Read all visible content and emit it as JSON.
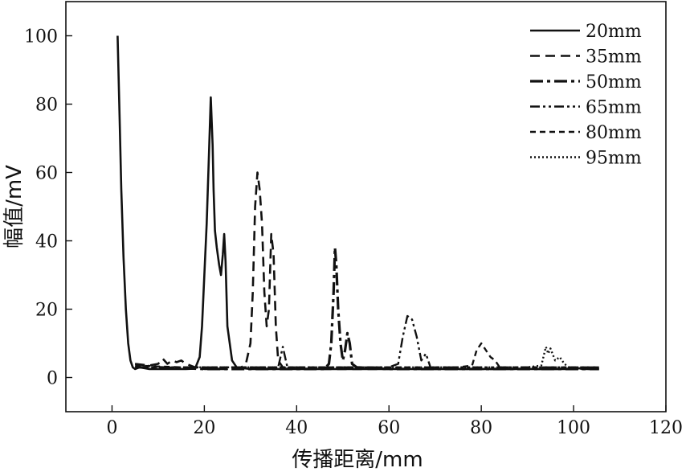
{
  "chart_data": {
    "type": "line",
    "xlabel": "传播距离/mm",
    "ylabel": "幅值/mV",
    "xlim": [
      -10,
      120
    ],
    "ylim": [
      -10,
      110
    ],
    "xticks": [
      0,
      20,
      40,
      60,
      80,
      100,
      120
    ],
    "yticks": [
      0,
      20,
      40,
      60,
      80,
      100
    ],
    "legend_position": "top-right",
    "grid": false,
    "series": [
      {
        "name": "20mm",
        "dash": "solid",
        "width": 2.6,
        "points": [
          [
            1.2,
            100
          ],
          [
            1.6,
            78
          ],
          [
            2,
            55
          ],
          [
            2.5,
            35
          ],
          [
            3,
            20
          ],
          [
            3.5,
            10
          ],
          [
            4,
            5
          ],
          [
            4.5,
            3
          ],
          [
            5,
            2.5
          ],
          [
            6,
            3
          ],
          [
            8,
            2.5
          ],
          [
            10,
            2.5
          ],
          [
            12,
            2.5
          ],
          [
            14,
            2.5
          ],
          [
            16,
            2.5
          ],
          [
            18,
            2.6
          ],
          [
            19,
            6
          ],
          [
            19.5,
            15
          ],
          [
            20,
            30
          ],
          [
            20.5,
            45
          ],
          [
            21,
            65
          ],
          [
            21.4,
            82
          ],
          [
            21.8,
            68
          ],
          [
            22,
            55
          ],
          [
            22.3,
            43
          ],
          [
            22.7,
            38
          ],
          [
            23.2,
            33
          ],
          [
            23.6,
            30
          ],
          [
            24,
            36
          ],
          [
            24.3,
            42
          ],
          [
            24.6,
            34
          ],
          [
            25,
            15
          ],
          [
            25.5,
            10
          ],
          [
            26,
            5
          ],
          [
            27,
            3
          ],
          [
            30,
            2.5
          ],
          [
            40,
            2.5
          ],
          [
            50,
            2.5
          ],
          [
            60,
            2.5
          ],
          [
            70,
            2.5
          ],
          [
            80,
            2.5
          ],
          [
            90,
            2.5
          ],
          [
            100,
            2.5
          ],
          [
            103,
            3
          ],
          [
            105.5,
            2.5
          ]
        ]
      },
      {
        "name": "35mm",
        "dash": "12,7",
        "width": 2.6,
        "points": [
          [
            5,
            4
          ],
          [
            8,
            3.5
          ],
          [
            10,
            4
          ],
          [
            11,
            5.5
          ],
          [
            12,
            4
          ],
          [
            13,
            5
          ],
          [
            14,
            4.5
          ],
          [
            15,
            5
          ],
          [
            16,
            4
          ],
          [
            18,
            3
          ],
          [
            20,
            2.5
          ],
          [
            25,
            2.5
          ],
          [
            28,
            3
          ],
          [
            29,
            4
          ],
          [
            30,
            10
          ],
          [
            30.5,
            25
          ],
          [
            31,
            50
          ],
          [
            31.5,
            60
          ],
          [
            32,
            55
          ],
          [
            32.5,
            45
          ],
          [
            33,
            25
          ],
          [
            33.5,
            15
          ],
          [
            34,
            20
          ],
          [
            34.5,
            42
          ],
          [
            35,
            36
          ],
          [
            35.5,
            15
          ],
          [
            36,
            5
          ],
          [
            37,
            3
          ],
          [
            40,
            2.5
          ],
          [
            50,
            2.5
          ],
          [
            70,
            2.5
          ],
          [
            90,
            2.5
          ],
          [
            105.5,
            2.5
          ]
        ]
      },
      {
        "name": "50mm",
        "dash": "16,5,4,5",
        "width": 3.2,
        "points": [
          [
            5,
            3
          ],
          [
            10,
            3
          ],
          [
            20,
            2.5
          ],
          [
            30,
            2.5
          ],
          [
            40,
            2.5
          ],
          [
            46,
            2.5
          ],
          [
            47,
            4
          ],
          [
            47.5,
            10
          ],
          [
            48,
            25
          ],
          [
            48.3,
            38
          ],
          [
            48.6,
            33
          ],
          [
            49,
            20
          ],
          [
            49.5,
            10
          ],
          [
            50,
            5
          ],
          [
            50.5,
            8
          ],
          [
            51,
            13
          ],
          [
            51.5,
            10
          ],
          [
            52,
            4
          ],
          [
            53,
            3
          ],
          [
            60,
            2.5
          ],
          [
            70,
            2.5
          ],
          [
            80,
            2.5
          ],
          [
            90,
            2.5
          ],
          [
            100,
            2.5
          ],
          [
            105.5,
            2.5
          ]
        ]
      },
      {
        "name": "65mm",
        "dash": "12,4,3,4,3,4",
        "width": 2.4,
        "points": [
          [
            5,
            4
          ],
          [
            10,
            3
          ],
          [
            20,
            3
          ],
          [
            30,
            3
          ],
          [
            36,
            3
          ],
          [
            37,
            9
          ],
          [
            37.5,
            6
          ],
          [
            38,
            3
          ],
          [
            45,
            3
          ],
          [
            55,
            3
          ],
          [
            60,
            3
          ],
          [
            62,
            4
          ],
          [
            63,
            12
          ],
          [
            64,
            18
          ],
          [
            65,
            17
          ],
          [
            66,
            12
          ],
          [
            67,
            5
          ],
          [
            68,
            7
          ],
          [
            69,
            3
          ],
          [
            75,
            3
          ],
          [
            85,
            3
          ],
          [
            95,
            3
          ],
          [
            105.5,
            3
          ]
        ]
      },
      {
        "name": "80mm",
        "dash": "7,5",
        "width": 2.4,
        "points": [
          [
            5,
            3.5
          ],
          [
            15,
            3
          ],
          [
            25,
            3
          ],
          [
            35,
            3
          ],
          [
            45,
            3
          ],
          [
            55,
            3
          ],
          [
            65,
            3
          ],
          [
            70,
            3
          ],
          [
            75,
            3
          ],
          [
            78,
            3.5
          ],
          [
            79,
            8
          ],
          [
            80,
            10
          ],
          [
            81,
            8
          ],
          [
            82,
            6
          ],
          [
            83,
            5
          ],
          [
            84,
            3
          ],
          [
            90,
            3
          ],
          [
            100,
            3
          ],
          [
            105.5,
            3
          ]
        ]
      },
      {
        "name": "95mm",
        "dash": "2,3",
        "width": 2.4,
        "points": [
          [
            5,
            3
          ],
          [
            20,
            3
          ],
          [
            40,
            3
          ],
          [
            60,
            3
          ],
          [
            80,
            3
          ],
          [
            90,
            3
          ],
          [
            93,
            3.5
          ],
          [
            94,
            9
          ],
          [
            94.5,
            7
          ],
          [
            95,
            8.5
          ],
          [
            96,
            5
          ],
          [
            97,
            6
          ],
          [
            98,
            4
          ],
          [
            99,
            3
          ],
          [
            102,
            2.5
          ],
          [
            105.5,
            2.5
          ]
        ]
      }
    ]
  }
}
